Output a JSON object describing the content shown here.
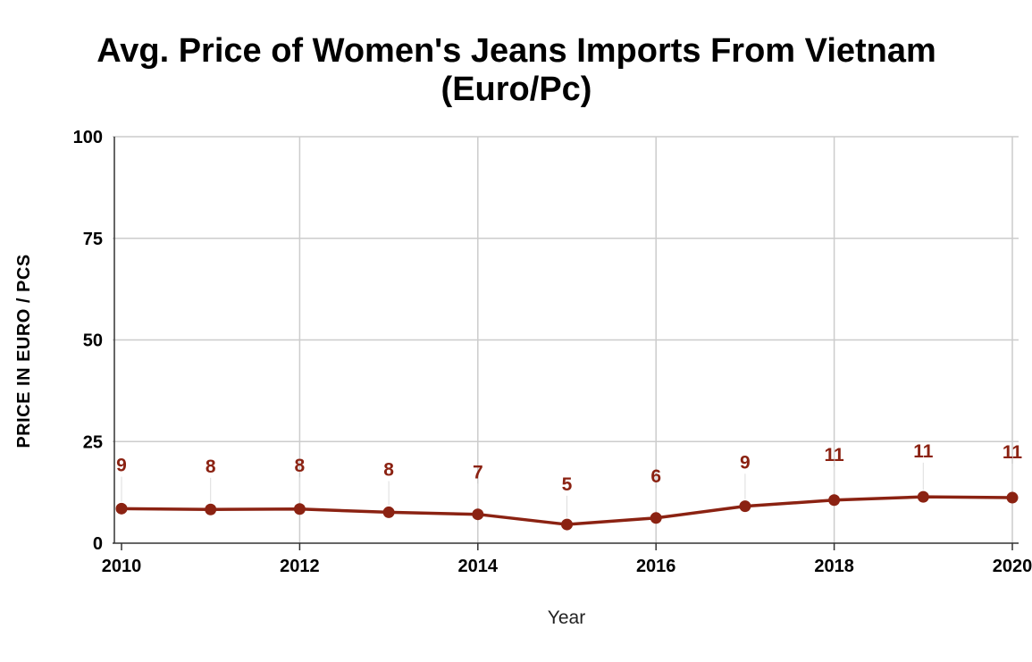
{
  "chart_data": {
    "type": "line",
    "title_lines": [
      "Avg. Price of Women's Jeans Imports From Vietnam",
      "(Euro/Pc)"
    ],
    "xlabel": "Year",
    "ylabel": "PRICE IN EURO / PCS",
    "ylim": [
      0,
      100
    ],
    "xlim": [
      2010,
      2020
    ],
    "y_ticks": [
      "0",
      "25",
      "50",
      "75",
      "100"
    ],
    "y_tick_values": [
      0,
      25,
      50,
      75,
      100
    ],
    "x_ticks": [
      "2010",
      "2012",
      "2014",
      "2016",
      "2018",
      "2020"
    ],
    "x_tick_values": [
      2010,
      2012,
      2014,
      2016,
      2018,
      2020
    ],
    "grid": true,
    "series": [
      {
        "color": "#8b2212",
        "x": [
          2010,
          2011,
          2012,
          2013,
          2014,
          2015,
          2016,
          2017,
          2018,
          2019,
          2020
        ],
        "values": [
          8.5,
          8.3,
          8.4,
          7.6,
          7.1,
          4.6,
          6.2,
          9.1,
          10.6,
          11.4,
          11.2
        ],
        "labels": [
          "9",
          "8",
          "8",
          "8",
          "7",
          "5",
          "6",
          "9",
          "11",
          "11",
          "11"
        ]
      }
    ]
  }
}
